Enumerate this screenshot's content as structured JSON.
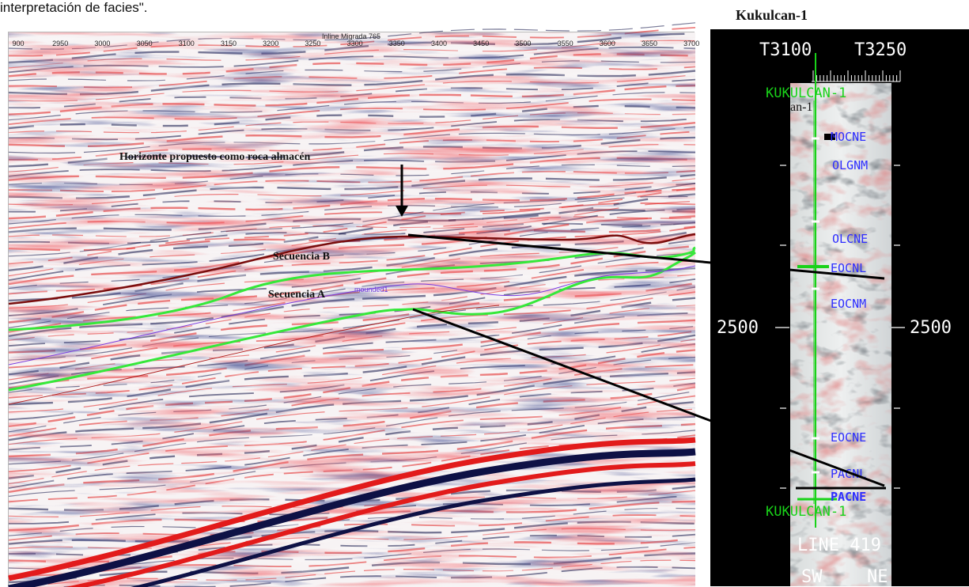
{
  "caption": "interpretación de facies\".",
  "well_title": "Kukulcan-1",
  "seismic": {
    "title": "Inline Migrada  765",
    "axis_ticks": [
      "900",
      "2950",
      "3000",
      "3050",
      "3100",
      "3150",
      "3200",
      "3250",
      "3300",
      "3350",
      "3400",
      "3450",
      "3500",
      "3550",
      "3600",
      "3650",
      "3700"
    ]
  },
  "annotations": {
    "horizonte": "Horizonte propuesto como roca almacén",
    "secuencia_b": "Secuencia B",
    "secuencia_a": "Secuencia A",
    "mounded": "mounded1"
  },
  "well_panel": {
    "t_left": "T3100",
    "t_right": "T3250",
    "well_name_top": "KUKULCAN-1",
    "well_name_bottom": "KUKULCAN-1",
    "partial_label": "an-1",
    "depth_left": "2500",
    "depth_right": "2500",
    "markers": [
      "MOCNE",
      "OLGNM",
      "OLCNE",
      "EOCNL",
      "EOCNM",
      "EOCNE",
      "PACNL",
      "PACNE"
    ],
    "line_label": "LINE 419",
    "dir_left": "SW",
    "dir_right": "NE"
  },
  "colors": {
    "seismic_red": "#e21b1b",
    "seismic_navy": "#0e1145",
    "horizon_brown": "#7a0d0d",
    "horizon_green": "#35e83a",
    "horizon_purple": "#7a3de0",
    "well_green": "#19d219",
    "well_blue": "#2e2eff"
  }
}
